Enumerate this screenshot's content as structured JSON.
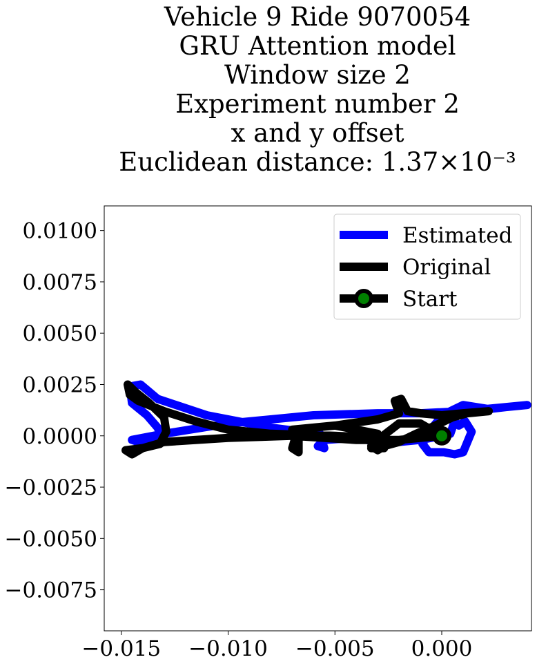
{
  "chart_data": {
    "type": "line",
    "title_lines": [
      "Vehicle 9 Ride 9070054",
      "GRU Attention model",
      "Window size 2",
      "Experiment number 2",
      "x and y offset",
      "Euclidean distance: 1.37×10⁻³"
    ],
    "xlim": [
      -0.0158,
      0.0042
    ],
    "ylim": [
      -0.0095,
      0.0112
    ],
    "xticks": [
      -0.015,
      -0.01,
      -0.005,
      0.0
    ],
    "xtick_labels": [
      "−0.015",
      "−0.010",
      "−0.005",
      "0.000"
    ],
    "yticks": [
      0.01,
      0.0075,
      0.005,
      0.0025,
      0.0,
      -0.0025,
      -0.005,
      -0.0075
    ],
    "ytick_labels": [
      "0.0100",
      "0.0075",
      "0.0050",
      "0.0025",
      "0.0000",
      "−0.0025",
      "−0.0050",
      "−0.0075"
    ],
    "legend_position": "upper-right",
    "series": [
      {
        "name": "Estimated",
        "color": "#0000ff",
        "points": [
          [
            0,
            0
          ],
          [
            0.0004,
            0.0001
          ],
          [
            0.0006,
            0.0007
          ],
          [
            0.0008,
            0.0005
          ],
          [
            0.0011,
            0.0007
          ],
          [
            0.0014,
            0.0002
          ],
          [
            0.001,
            -0.0008
          ],
          [
            0.0006,
            -0.0009
          ],
          [
            0.0001,
            -0.0008
          ],
          [
            -0.0006,
            -0.0008
          ],
          [
            -0.0009,
            -0.0004
          ],
          [
            -0.0006,
            0.0002
          ],
          [
            -0.0002,
            0.0007
          ],
          [
            0.0002,
            0.0011
          ],
          [
            0.0006,
            0.0013
          ],
          [
            0.001,
            0.0015
          ],
          [
            0.0022,
            0.0013
          ],
          [
            0.003,
            0.0014
          ],
          [
            0.004,
            0.0015
          ],
          [
            0.001,
            0.0012
          ],
          [
            -0.001,
            0.0011
          ],
          [
            -0.003,
            0.0011
          ],
          [
            -0.006,
            0.001
          ],
          [
            -0.01,
            0.0006
          ],
          [
            -0.013,
            0.0001
          ],
          [
            -0.0145,
            -0.0002
          ],
          [
            -0.0139,
            -0.0004
          ],
          [
            -0.0131,
            -0.0001
          ],
          [
            -0.0133,
            0.0004
          ],
          [
            -0.0138,
            0.001
          ],
          [
            -0.0145,
            0.0016
          ],
          [
            -0.0146,
            0.0024
          ],
          [
            -0.0141,
            0.0025
          ],
          [
            -0.0133,
            0.0018
          ],
          [
            -0.011,
            0.001
          ],
          [
            -0.008,
            0.0004
          ],
          [
            -0.0057,
            0.0001
          ],
          [
            -0.0055,
            -0.0006
          ],
          [
            -0.0058,
            -0.0005
          ],
          [
            -0.0055,
            -0.0002
          ],
          [
            -0.004,
            -0.0001
          ],
          [
            -0.003,
            -0.0003
          ],
          [
            -0.002,
            -0.0003
          ],
          [
            -0.001,
            -0.0002
          ],
          [
            0,
            0
          ]
        ]
      },
      {
        "name": "Original",
        "color": "#000000",
        "points": [
          [
            0,
            0
          ],
          [
            -0.001,
            0.0006
          ],
          [
            -0.002,
            0.0006
          ],
          [
            -0.0025,
            0.0002
          ],
          [
            -0.003,
            -0.0002
          ],
          [
            -0.0033,
            -0.0005
          ],
          [
            -0.003,
            -0.0007
          ],
          [
            -0.0027,
            -0.0005
          ],
          [
            -0.002,
            -0.0003
          ],
          [
            -0.0012,
            0.0001
          ],
          [
            -0.0003,
            0.0005
          ],
          [
            0.0005,
            0.0009
          ],
          [
            0.0012,
            0.0011
          ],
          [
            0.0022,
            0.0012
          ],
          [
            0.001,
            0.0011
          ],
          [
            0,
            0.001
          ],
          [
            -0.001,
            0.0011
          ],
          [
            -0.0016,
            0.0012
          ],
          [
            -0.0019,
            0.0018
          ],
          [
            -0.0022,
            0.0017
          ],
          [
            -0.002,
            0.0011
          ],
          [
            -0.003,
            0.0008
          ],
          [
            -0.005,
            0.0005
          ],
          [
            -0.007,
            0.0003
          ],
          [
            -0.0067,
            -0.0002
          ],
          [
            -0.0067,
            -0.0008
          ],
          [
            -0.007,
            -0.0006
          ],
          [
            -0.0068,
            0.0001
          ],
          [
            -0.006,
            0.0004
          ],
          [
            -0.005,
            0.0005
          ],
          [
            -0.004,
            0.0003
          ],
          [
            -0.003,
            0.0001
          ],
          [
            -0.0033,
            -0.0006
          ],
          [
            -0.0027,
            -0.0006
          ],
          [
            -0.003,
            -0.0001
          ],
          [
            -0.005,
            0
          ],
          [
            -0.008,
            0.0001
          ],
          [
            -0.01,
            0.0003
          ],
          [
            -0.0115,
            0.0007
          ],
          [
            -0.013,
            0.0012
          ],
          [
            -0.0142,
            0.0017
          ],
          [
            -0.0146,
            0.002
          ],
          [
            -0.0147,
            0.0025
          ],
          [
            -0.0143,
            0.0021
          ],
          [
            -0.0137,
            0.0016
          ],
          [
            -0.013,
            0.0009
          ],
          [
            -0.0129,
            0.0002
          ],
          [
            -0.0132,
            -0.0004
          ],
          [
            -0.014,
            -0.0006
          ],
          [
            -0.0148,
            -0.0007
          ],
          [
            -0.0145,
            -0.0009
          ],
          [
            -0.014,
            -0.0006
          ],
          [
            -0.013,
            -0.0003
          ],
          [
            -0.01,
            -0.0001
          ],
          [
            -0.007,
            0
          ],
          [
            -0.004,
            -0.0002
          ],
          [
            -0.002,
            -0.0002
          ],
          [
            0,
            0
          ]
        ]
      }
    ],
    "start": {
      "name": "Start",
      "x": 0.0,
      "y": 0.0,
      "color": "#008000",
      "edge_color": "#000000"
    }
  }
}
